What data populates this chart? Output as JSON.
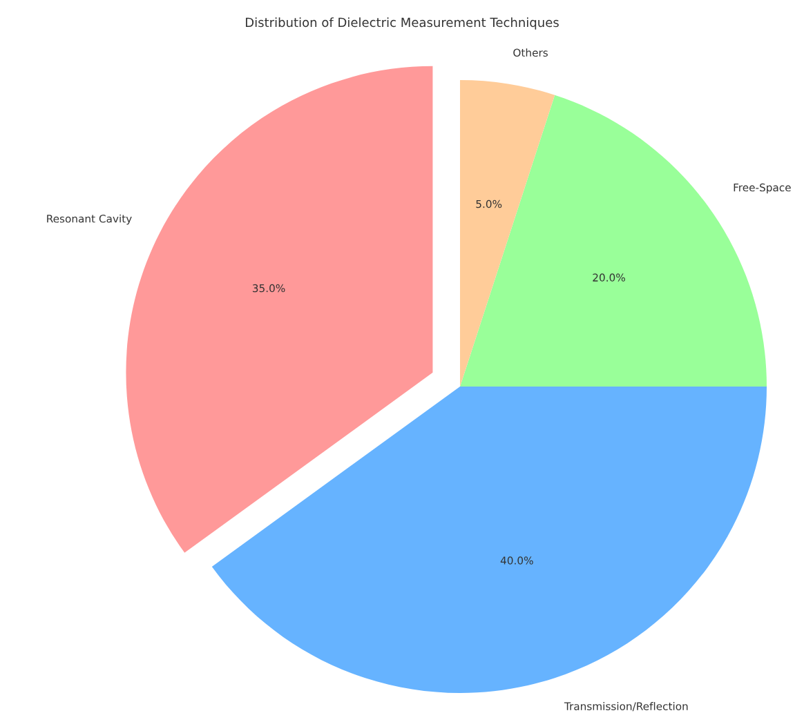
{
  "chart_data": {
    "type": "pie",
    "title": "Distribution of Dielectric Measurement Techniques",
    "categories": [
      "Resonant Cavity",
      "Transmission/Reflection",
      "Free-Space",
      "Others"
    ],
    "values": [
      35,
      40,
      20,
      5
    ],
    "value_labels": [
      "35.0%",
      "40.0%",
      "20.0%",
      "5.0%"
    ],
    "colors": [
      "#ff9999",
      "#66b3ff",
      "#99ff99",
      "#ffcc99"
    ],
    "legend": false
  }
}
